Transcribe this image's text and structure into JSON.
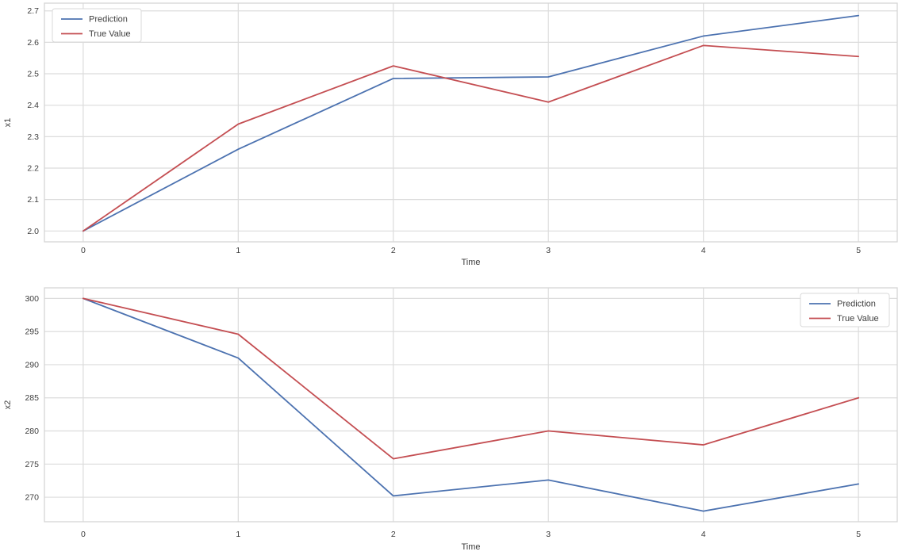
{
  "chart_data": [
    {
      "type": "line",
      "name": "x1-chart",
      "title": "",
      "xlabel": "Time",
      "ylabel": "x1",
      "x": [
        0,
        1,
        2,
        3,
        4,
        5
      ],
      "xlim": [
        -0.25,
        5.25
      ],
      "ylim": [
        1.9655,
        2.7245
      ],
      "xticks": [
        0,
        1,
        2,
        3,
        4,
        5
      ],
      "xtick_labels": [
        "0",
        "1",
        "2",
        "3",
        "4",
        "5"
      ],
      "yticks": [
        2.0,
        2.1,
        2.2,
        2.3,
        2.4,
        2.5,
        2.6,
        2.7
      ],
      "ytick_labels": [
        "2.0",
        "2.1",
        "2.2",
        "2.3",
        "2.4",
        "2.5",
        "2.6",
        "2.7"
      ],
      "grid": true,
      "legend_position": "top-left",
      "series": [
        {
          "name": "Prediction",
          "color": "#4C72B0",
          "values": [
            2.0,
            2.26,
            2.485,
            2.49,
            2.62,
            2.685
          ]
        },
        {
          "name": "True Value",
          "color": "#C44E52",
          "values": [
            2.0,
            2.34,
            2.525,
            2.41,
            2.59,
            2.555
          ]
        }
      ]
    },
    {
      "type": "line",
      "name": "x2-chart",
      "title": "",
      "xlabel": "Time",
      "ylabel": "x2",
      "x": [
        0,
        1,
        2,
        3,
        4,
        5
      ],
      "xlim": [
        -0.25,
        5.25
      ],
      "ylim": [
        266.3,
        301.6
      ],
      "xticks": [
        0,
        1,
        2,
        3,
        4,
        5
      ],
      "xtick_labels": [
        "0",
        "1",
        "2",
        "3",
        "4",
        "5"
      ],
      "yticks": [
        270,
        275,
        280,
        285,
        290,
        295,
        300
      ],
      "ytick_labels": [
        "270",
        "275",
        "280",
        "285",
        "290",
        "295",
        "300"
      ],
      "grid": true,
      "legend_position": "top-right",
      "series": [
        {
          "name": "Prediction",
          "color": "#4C72B0",
          "values": [
            300.0,
            291.0,
            270.2,
            272.6,
            267.9,
            272.0
          ]
        },
        {
          "name": "True Value",
          "color": "#C44E52",
          "values": [
            300.0,
            294.6,
            275.8,
            280.0,
            277.9,
            285.0
          ]
        }
      ]
    }
  ],
  "style": {
    "background": "#ffffff",
    "grid_color": "#dcdcdc",
    "spine_color": "#d5d5d5",
    "tick_text_color": "#3d3d3d",
    "label_text_color": "#3d3d3d",
    "legend_border_color": "#d9d9d9",
    "legend_background": "#ffffff",
    "line_width": 1.8
  }
}
